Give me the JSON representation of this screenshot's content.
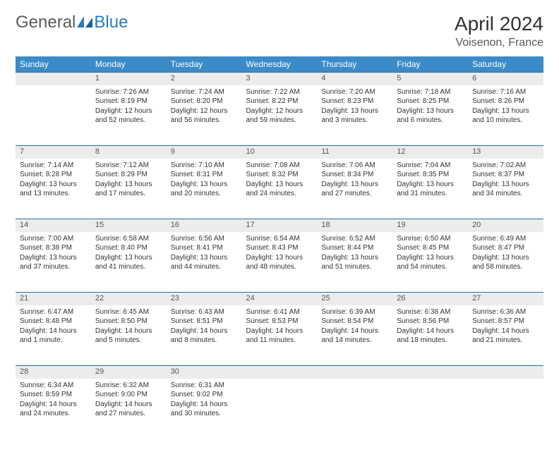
{
  "brand": {
    "part1": "General",
    "part2": "Blue"
  },
  "title": "April 2024",
  "location": "Voisenon, France",
  "colors": {
    "header_bg": "#3b8bc8",
    "header_text": "#ffffff",
    "daynum_bg": "#ececec",
    "row_border": "#2a6ea8",
    "logo_gray": "#5a5a5a",
    "logo_blue": "#2a7bbf"
  },
  "day_headers": [
    "Sunday",
    "Monday",
    "Tuesday",
    "Wednesday",
    "Thursday",
    "Friday",
    "Saturday"
  ],
  "weeks": [
    {
      "nums": [
        "",
        "1",
        "2",
        "3",
        "4",
        "5",
        "6"
      ],
      "cells": [
        "",
        "Sunrise: 7:26 AM\nSunset: 8:19 PM\nDaylight: 12 hours and 52 minutes.",
        "Sunrise: 7:24 AM\nSunset: 8:20 PM\nDaylight: 12 hours and 56 minutes.",
        "Sunrise: 7:22 AM\nSunset: 8:22 PM\nDaylight: 12 hours and 59 minutes.",
        "Sunrise: 7:20 AM\nSunset: 8:23 PM\nDaylight: 13 hours and 3 minutes.",
        "Sunrise: 7:18 AM\nSunset: 8:25 PM\nDaylight: 13 hours and 6 minutes.",
        "Sunrise: 7:16 AM\nSunset: 8:26 PM\nDaylight: 13 hours and 10 minutes."
      ]
    },
    {
      "nums": [
        "7",
        "8",
        "9",
        "10",
        "11",
        "12",
        "13"
      ],
      "cells": [
        "Sunrise: 7:14 AM\nSunset: 8:28 PM\nDaylight: 13 hours and 13 minutes.",
        "Sunrise: 7:12 AM\nSunset: 8:29 PM\nDaylight: 13 hours and 17 minutes.",
        "Sunrise: 7:10 AM\nSunset: 8:31 PM\nDaylight: 13 hours and 20 minutes.",
        "Sunrise: 7:08 AM\nSunset: 8:32 PM\nDaylight: 13 hours and 24 minutes.",
        "Sunrise: 7:06 AM\nSunset: 8:34 PM\nDaylight: 13 hours and 27 minutes.",
        "Sunrise: 7:04 AM\nSunset: 8:35 PM\nDaylight: 13 hours and 31 minutes.",
        "Sunrise: 7:02 AM\nSunset: 8:37 PM\nDaylight: 13 hours and 34 minutes."
      ]
    },
    {
      "nums": [
        "14",
        "15",
        "16",
        "17",
        "18",
        "19",
        "20"
      ],
      "cells": [
        "Sunrise: 7:00 AM\nSunset: 8:38 PM\nDaylight: 13 hours and 37 minutes.",
        "Sunrise: 6:58 AM\nSunset: 8:40 PM\nDaylight: 13 hours and 41 minutes.",
        "Sunrise: 6:56 AM\nSunset: 8:41 PM\nDaylight: 13 hours and 44 minutes.",
        "Sunrise: 6:54 AM\nSunset: 8:43 PM\nDaylight: 13 hours and 48 minutes.",
        "Sunrise: 6:52 AM\nSunset: 8:44 PM\nDaylight: 13 hours and 51 minutes.",
        "Sunrise: 6:50 AM\nSunset: 8:45 PM\nDaylight: 13 hours and 54 minutes.",
        "Sunrise: 6:49 AM\nSunset: 8:47 PM\nDaylight: 13 hours and 58 minutes."
      ]
    },
    {
      "nums": [
        "21",
        "22",
        "23",
        "24",
        "25",
        "26",
        "27"
      ],
      "cells": [
        "Sunrise: 6:47 AM\nSunset: 8:48 PM\nDaylight: 14 hours and 1 minute.",
        "Sunrise: 6:45 AM\nSunset: 8:50 PM\nDaylight: 14 hours and 5 minutes.",
        "Sunrise: 6:43 AM\nSunset: 8:51 PM\nDaylight: 14 hours and 8 minutes.",
        "Sunrise: 6:41 AM\nSunset: 8:53 PM\nDaylight: 14 hours and 11 minutes.",
        "Sunrise: 6:39 AM\nSunset: 8:54 PM\nDaylight: 14 hours and 14 minutes.",
        "Sunrise: 6:38 AM\nSunset: 8:56 PM\nDaylight: 14 hours and 18 minutes.",
        "Sunrise: 6:36 AM\nSunset: 8:57 PM\nDaylight: 14 hours and 21 minutes."
      ]
    },
    {
      "nums": [
        "28",
        "29",
        "30",
        "",
        "",
        "",
        ""
      ],
      "cells": [
        "Sunrise: 6:34 AM\nSunset: 8:59 PM\nDaylight: 14 hours and 24 minutes.",
        "Sunrise: 6:32 AM\nSunset: 9:00 PM\nDaylight: 14 hours and 27 minutes.",
        "Sunrise: 6:31 AM\nSunset: 9:02 PM\nDaylight: 14 hours and 30 minutes.",
        "",
        "",
        "",
        ""
      ]
    }
  ]
}
